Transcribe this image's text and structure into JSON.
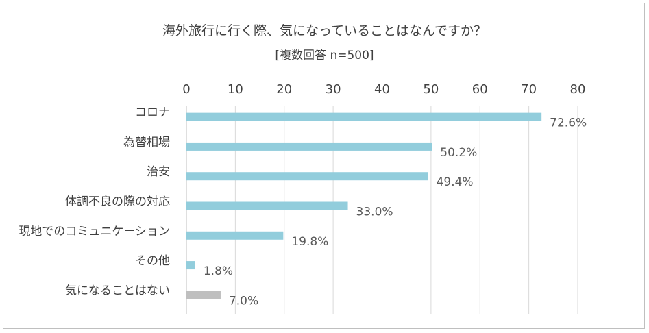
{
  "title": "海外旅行に行く際、気になっていることはなんですか？",
  "subtitle": "[複数回答 n=500]",
  "chart_data": {
    "type": "bar",
    "orientation": "horizontal",
    "title": "海外旅行に行く際、気になっていることはなんですか？",
    "subtitle": "[複数回答 n=500]",
    "categories": [
      "コロナ",
      "為替相場",
      "治安",
      "体調不良の際の対応",
      "現地でのコミュニケーション",
      "その他",
      "気になることはない"
    ],
    "values": [
      72.6,
      50.2,
      49.4,
      33.0,
      19.8,
      1.8,
      7.0
    ],
    "data_labels": [
      "72.6%",
      "50.2%",
      "49.4%",
      "33.0%",
      "19.8%",
      "1.8%",
      "7.0%"
    ],
    "bar_colors": [
      "#92cddc",
      "#92cddc",
      "#92cddc",
      "#92cddc",
      "#92cddc",
      "#92cddc",
      "#bfbfbf"
    ],
    "xlim": [
      0,
      80
    ],
    "x_ticks": [
      "0",
      "10",
      "20",
      "30",
      "40",
      "50",
      "60",
      "70",
      "80"
    ],
    "x_axis_position": "top",
    "grid": true,
    "legend": "none"
  }
}
